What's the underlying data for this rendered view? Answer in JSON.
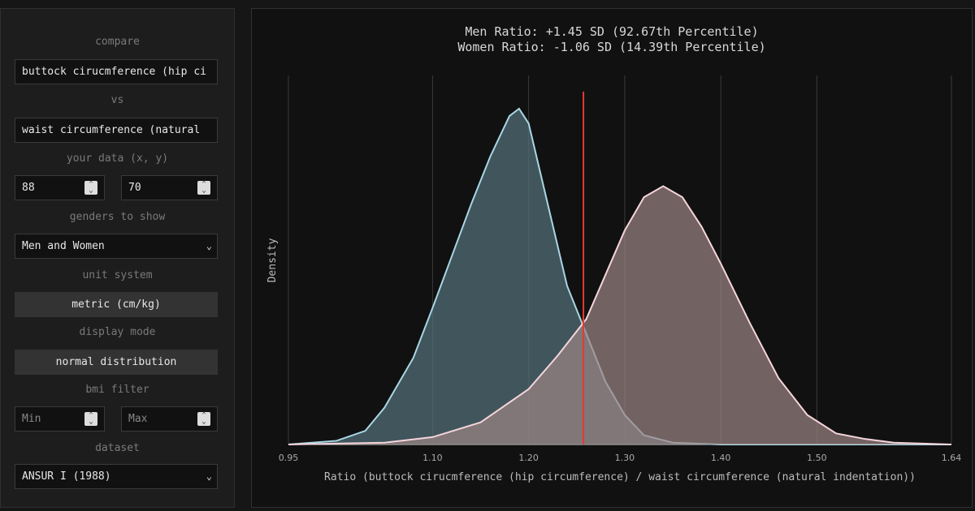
{
  "sidebar": {
    "compare_label": "compare",
    "compare_x": "buttock cirucmference (hip ci",
    "vs_label": "vs",
    "compare_y": "waist circumference (natural",
    "your_data_label": "your data (x, y)",
    "x_value": 88,
    "y_value": 70,
    "genders_label": "genders to show",
    "genders": "Men and Women",
    "unit_label": "unit system",
    "unit": "metric (cm/kg)",
    "display_label": "display mode",
    "display": "normal distribution",
    "bmi_label": "bmi filter",
    "bmi_min": "Min",
    "bmi_max": "Max",
    "dataset_label": "dataset",
    "dataset": "ANSUR I (1988)"
  },
  "chart_data": {
    "type": "area",
    "title": "Men Ratio: +1.45 SD (92.67th Percentile)",
    "subtitle": "Women Ratio: -1.06 SD (14.39th Percentile)",
    "x_label": "Ratio (buttock cirucmference (hip circumference) / waist circumference (natural indentation))",
    "y_label": "Density",
    "xlim": [
      0.95,
      1.64
    ],
    "xticks": [
      0.95,
      {
        "value": 1.1,
        "label": "1.10"
      },
      {
        "value": 1.2,
        "label": "1.20"
      },
      {
        "value": 1.3,
        "label": "1.30"
      },
      {
        "value": 1.4,
        "label": "1.40"
      },
      {
        "value": 1.5,
        "label": "1.50"
      },
      1.64
    ],
    "ylim": [
      0,
      10
    ],
    "grid": true,
    "reference_line": {
      "x": 1.257,
      "color": "#e53935"
    },
    "series": [
      {
        "color": "#a9d6e5",
        "fill": "#56737c",
        "x": [
          0.95,
          1.0,
          1.03,
          1.05,
          1.08,
          1.1,
          1.12,
          1.14,
          1.16,
          1.18,
          1.19,
          1.2,
          1.22,
          1.24,
          1.26,
          1.28,
          1.3,
          1.32,
          1.35,
          1.4,
          1.64
        ],
        "values": [
          0,
          0.1,
          0.37,
          1.0,
          2.35,
          3.7,
          5.1,
          6.5,
          7.8,
          8.9,
          9.1,
          8.7,
          6.5,
          4.3,
          3.0,
          1.7,
          0.8,
          0.25,
          0.05,
          0,
          0
        ]
      },
      {
        "color": "#f5d5dc",
        "fill": "#9c8585",
        "x": [
          0.95,
          1.05,
          1.1,
          1.15,
          1.2,
          1.23,
          1.26,
          1.28,
          1.3,
          1.32,
          1.34,
          1.36,
          1.38,
          1.4,
          1.43,
          1.46,
          1.49,
          1.52,
          1.55,
          1.58,
          1.64
        ],
        "values": [
          0,
          0.05,
          0.2,
          0.6,
          1.5,
          2.4,
          3.4,
          4.6,
          5.8,
          6.7,
          7.0,
          6.7,
          5.9,
          4.9,
          3.3,
          1.8,
          0.8,
          0.3,
          0.15,
          0.05,
          0
        ]
      }
    ]
  }
}
